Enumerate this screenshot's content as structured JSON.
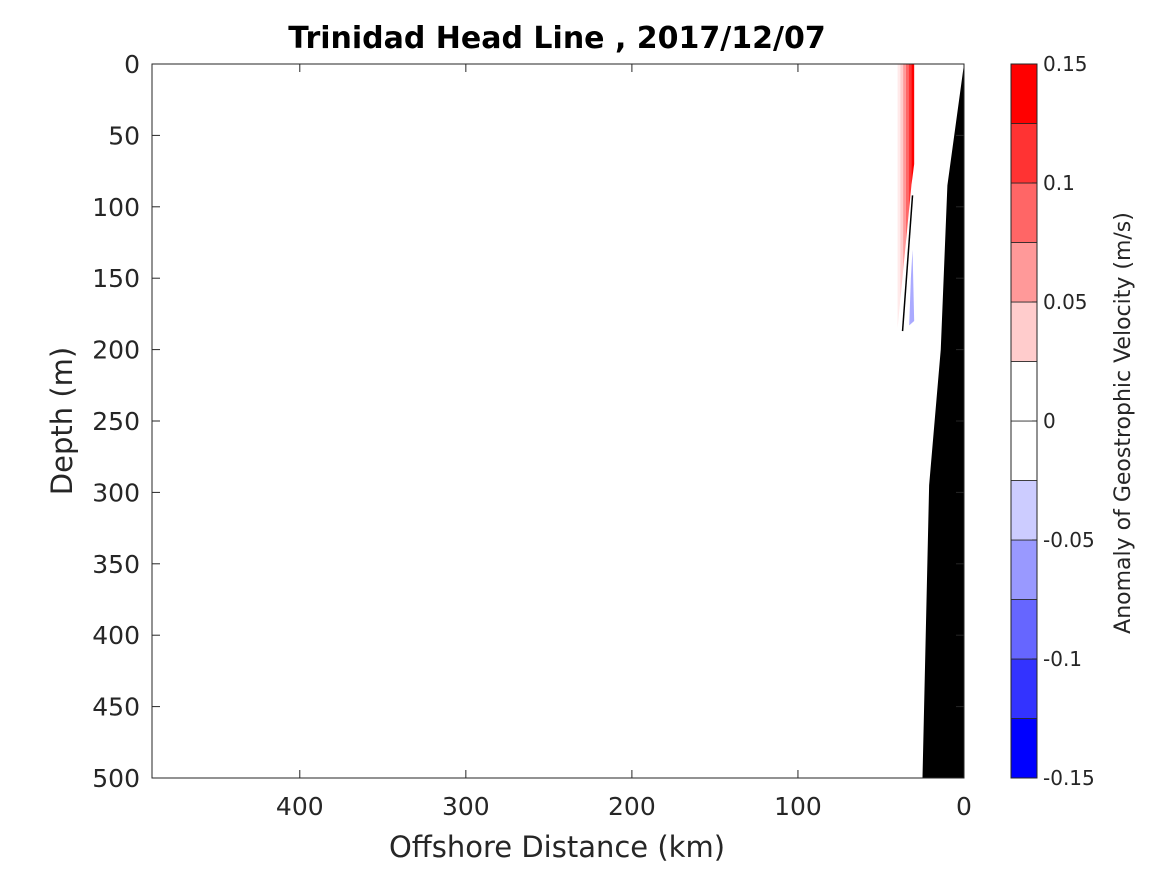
{
  "chart_data": {
    "type": "heatmap",
    "title": "Trinidad Head Line , 2017/12/07",
    "xlabel": "Offshore Distance (km)",
    "ylabel": "Depth (m)",
    "xlim": [
      489,
      0
    ],
    "ylim": [
      500,
      0
    ],
    "x_reversed": true,
    "y_reversed": true,
    "xticks": [
      400,
      300,
      200,
      100,
      0
    ],
    "xtick_labels": [
      "400",
      "300",
      "200",
      "100",
      "0"
    ],
    "yticks": [
      0,
      50,
      100,
      150,
      200,
      250,
      300,
      350,
      400,
      450,
      500
    ],
    "ytick_labels": [
      "0",
      "50",
      "100",
      "150",
      "200",
      "250",
      "300",
      "350",
      "400",
      "450",
      "500"
    ],
    "colorbar": {
      "label": "Anomaly of Geostrophic Velocity (m/s)",
      "range": [
        -0.15,
        0.15
      ],
      "levels": [
        -0.15,
        -0.125,
        -0.1,
        -0.075,
        -0.05,
        -0.025,
        0,
        0.025,
        0.05,
        0.075,
        0.1,
        0.125,
        0.15
      ],
      "colors": [
        "#0000ff",
        "#3333ff",
        "#6666ff",
        "#9999ff",
        "#ccccff",
        "#ffffff",
        "#ffffff",
        "#ffcccc",
        "#ff9999",
        "#ff6666",
        "#ff3333",
        "#ff0000"
      ],
      "tick_values": [
        0.15,
        0.1,
        0.05,
        0,
        -0.05,
        -0.1,
        -0.15
      ],
      "tick_labels": [
        "0.15",
        "0.1",
        "0.05",
        "0",
        "-0.05",
        "-0.1",
        "-0.15"
      ]
    },
    "bathymetry": {
      "color": "#000000",
      "profile": [
        [
          0,
          0
        ],
        [
          10,
          85
        ],
        [
          14,
          200
        ],
        [
          21,
          295
        ],
        [
          25,
          500
        ]
      ]
    },
    "anomalies": [
      {
        "sign": "positive",
        "distance_range_km": [
          30,
          40
        ],
        "depth_range_m": [
          0,
          185
        ],
        "max_value": 0.15
      },
      {
        "sign": "negative",
        "distance_range_km": [
          30,
          35
        ],
        "depth_range_m": [
          130,
          185
        ],
        "min_value": -0.05
      }
    ],
    "zero_contour": [
      [
        31,
        92
      ],
      [
        37,
        187
      ]
    ]
  }
}
